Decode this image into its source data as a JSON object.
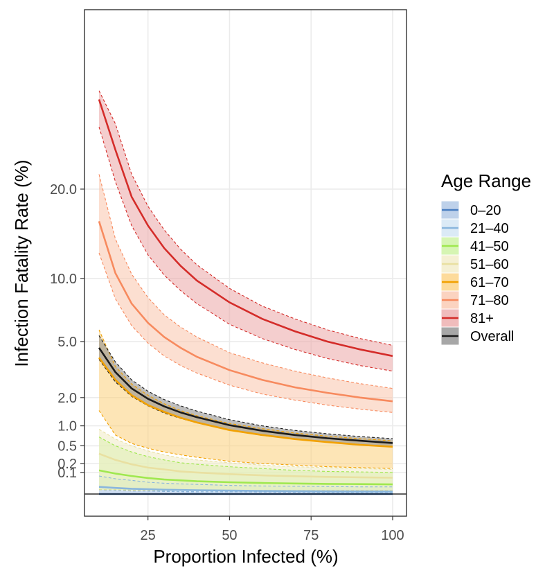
{
  "chart_data": {
    "type": "line",
    "title": "",
    "xlabel": "Proportion Infected (%)",
    "ylabel": "Infection Fatality Rate (%)",
    "xlim": [
      10,
      100
    ],
    "ylim_scale": "sqrt",
    "x_ticks": [
      25,
      50,
      75,
      100
    ],
    "x_tick_labels": [
      "25",
      "50",
      "75",
      "100"
    ],
    "y_ticks": [
      0.1,
      0.2,
      0.5,
      1.0,
      2.0,
      5.0,
      10.0,
      20.0
    ],
    "y_tick_labels": [
      "0.1",
      "0.2",
      "0.5",
      "1.0",
      "2.0",
      "5.0",
      "10.0",
      "20.0"
    ],
    "grid": true,
    "legend": {
      "title": "Age Range",
      "position": "right"
    },
    "x": [
      10,
      15,
      20,
      25,
      30,
      35,
      40,
      50,
      60,
      70,
      80,
      90,
      100
    ],
    "series": [
      {
        "name": "0–20",
        "color": "#4a7fc1",
        "band_color": "#a8c1e3",
        "values": [
          0.0,
          0.0,
          0.0,
          0.0,
          0.0,
          0.0,
          0.0,
          0.0,
          0.0,
          0.0,
          0.0,
          0.0,
          0.0
        ],
        "lower": [
          0.0,
          0.0,
          0.0,
          0.0,
          0.0,
          0.0,
          0.0,
          0.0,
          0.0,
          0.0,
          0.0,
          0.0,
          0.0
        ],
        "upper": [
          0.004,
          0.003,
          0.002,
          0.002,
          0.0015,
          0.0012,
          0.001,
          0.001,
          0.001,
          0.001,
          0.001,
          0.001,
          0.001
        ]
      },
      {
        "name": "21–40",
        "color": "#8ab6dd",
        "band_color": "#cfe3f3",
        "values": [
          0.011,
          0.008,
          0.006,
          0.005,
          0.004,
          0.0035,
          0.003,
          0.0025,
          0.002,
          0.0018,
          0.0016,
          0.0015,
          0.0014
        ],
        "lower": [
          0.004,
          0.003,
          0.002,
          0.002,
          0.0015,
          0.0012,
          0.001,
          0.001,
          0.0008,
          0.0007,
          0.0006,
          0.0005,
          0.0005
        ],
        "upper": [
          0.07,
          0.05,
          0.04,
          0.03,
          0.025,
          0.022,
          0.02,
          0.016,
          0.014,
          0.013,
          0.012,
          0.011,
          0.011
        ]
      },
      {
        "name": "41–50",
        "color": "#9fe84f",
        "band_color": "#c8f29a",
        "values": [
          0.12,
          0.09,
          0.07,
          0.055,
          0.045,
          0.04,
          0.035,
          0.03,
          0.026,
          0.024,
          0.022,
          0.021,
          0.02
        ],
        "lower": [
          0.004,
          0.004,
          0.003,
          0.003,
          0.003,
          0.003,
          0.003,
          0.003,
          0.003,
          0.003,
          0.003,
          0.003,
          0.003
        ],
        "upper": [
          0.7,
          0.5,
          0.38,
          0.3,
          0.25,
          0.21,
          0.19,
          0.16,
          0.14,
          0.12,
          0.11,
          0.105,
          0.1
        ]
      },
      {
        "name": "51–60",
        "color": "#e9e0a1",
        "band_color": "#f1ebc4",
        "values": [
          0.35,
          0.25,
          0.19,
          0.15,
          0.13,
          0.11,
          0.1,
          0.085,
          0.075,
          0.068,
          0.063,
          0.06,
          0.057
        ],
        "lower": [
          0.004,
          0.004,
          0.003,
          0.003,
          0.003,
          0.003,
          0.003,
          0.003,
          0.003,
          0.003,
          0.003,
          0.003,
          0.003
        ],
        "upper": [
          0.9,
          0.65,
          0.5,
          0.4,
          0.33,
          0.28,
          0.25,
          0.21,
          0.18,
          0.16,
          0.15,
          0.14,
          0.13
        ]
      },
      {
        "name": "61–70",
        "color": "#f2a100",
        "band_color": "#fccf7a",
        "values": [
          4.0,
          2.8,
          2.1,
          1.7,
          1.45,
          1.25,
          1.1,
          0.88,
          0.75,
          0.65,
          0.58,
          0.52,
          0.48
        ],
        "lower": [
          1.5,
          0.75,
          0.55,
          0.45,
          0.38,
          0.33,
          0.29,
          0.23,
          0.2,
          0.18,
          0.16,
          0.15,
          0.14
        ],
        "upper": [
          5.8,
          3.5,
          2.6,
          2.1,
          1.75,
          1.5,
          1.32,
          1.07,
          0.92,
          0.8,
          0.72,
          0.66,
          0.61
        ]
      },
      {
        "name": "71–80",
        "color": "#f78a5e",
        "band_color": "#f9c4ab",
        "values": [
          16.0,
          10.5,
          7.8,
          6.3,
          5.3,
          4.6,
          4.05,
          3.3,
          2.8,
          2.45,
          2.2,
          2.0,
          1.85
        ],
        "lower": [
          12.5,
          8.2,
          6.1,
          4.9,
          4.1,
          3.55,
          3.15,
          2.55,
          2.15,
          1.9,
          1.7,
          1.55,
          1.43
        ],
        "upper": [
          22.0,
          14.0,
          10.4,
          8.3,
          6.9,
          6.0,
          5.3,
          4.3,
          3.7,
          3.25,
          2.9,
          2.62,
          2.4
        ]
      },
      {
        "name": "81+",
        "color": "#d42c29",
        "band_color": "#eba6a5",
        "values": [
          33.5,
          25.5,
          19.0,
          15.5,
          13.0,
          11.2,
          9.8,
          7.9,
          6.6,
          5.7,
          5.0,
          4.5,
          4.1
        ],
        "lower": [
          29.0,
          21.0,
          15.5,
          12.3,
          10.3,
          8.9,
          7.8,
          6.2,
          5.2,
          4.5,
          3.95,
          3.55,
          3.25
        ],
        "upper": [
          35.0,
          29.5,
          22.0,
          17.8,
          15.0,
          12.9,
          11.3,
          9.1,
          7.6,
          6.6,
          5.8,
          5.2,
          4.75
        ]
      },
      {
        "name": "Overall",
        "color": "#1a1a1a",
        "band_color": "#8a8a8a",
        "values": [
          4.6,
          3.2,
          2.4,
          1.95,
          1.65,
          1.43,
          1.27,
          1.02,
          0.86,
          0.75,
          0.67,
          0.61,
          0.56
        ],
        "lower": [
          3.9,
          2.7,
          2.05,
          1.67,
          1.41,
          1.23,
          1.09,
          0.88,
          0.74,
          0.65,
          0.58,
          0.53,
          0.48
        ],
        "upper": [
          5.4,
          3.75,
          2.8,
          2.27,
          1.92,
          1.67,
          1.48,
          1.19,
          1.0,
          0.87,
          0.78,
          0.71,
          0.66
        ]
      }
    ]
  }
}
